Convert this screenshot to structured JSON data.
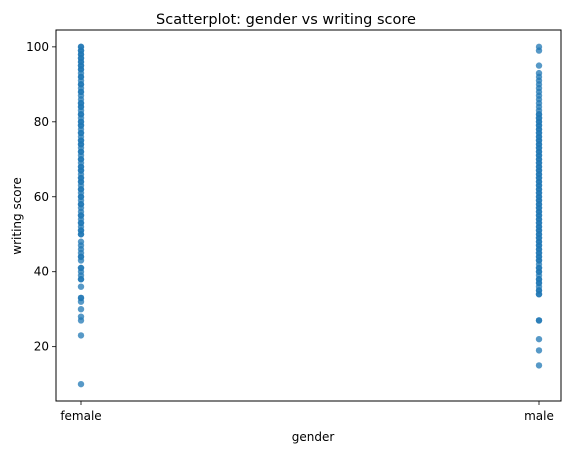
{
  "chart_data": {
    "type": "scatter",
    "title": "Scatterplot: gender vs writing score",
    "xlabel": "gender",
    "ylabel": "writing score",
    "categories": [
      "female",
      "male"
    ],
    "ylim": [
      5.5,
      104.5
    ],
    "yticks": [
      20,
      40,
      60,
      80,
      100
    ],
    "ytick_labels": [
      "20",
      "40",
      "60",
      "80",
      "100"
    ],
    "grid": false,
    "point_color": "#1f77b4",
    "point_alpha": 0.75,
    "series": [
      {
        "category": "female",
        "values": [
          10,
          23,
          27,
          28,
          30,
          32,
          33,
          33,
          36,
          38,
          38,
          39,
          40,
          41,
          41,
          43,
          44,
          44,
          45,
          46,
          47,
          48,
          50,
          50,
          51,
          51,
          52,
          53,
          53,
          54,
          55,
          55,
          56,
          57,
          58,
          58,
          59,
          60,
          60,
          61,
          62,
          62,
          63,
          64,
          64,
          65,
          65,
          66,
          67,
          67,
          68,
          68,
          69,
          70,
          70,
          71,
          72,
          72,
          73,
          74,
          74,
          75,
          75,
          76,
          77,
          77,
          78,
          79,
          79,
          80,
          80,
          81,
          82,
          82,
          83,
          84,
          84,
          85,
          85,
          86,
          87,
          88,
          88,
          89,
          90,
          90,
          91,
          92,
          92,
          93,
          94,
          94,
          95,
          95,
          96,
          96,
          97,
          97,
          98,
          98,
          99,
          99,
          100,
          100
        ]
      },
      {
        "category": "male",
        "values": [
          15,
          19,
          22,
          27,
          27,
          34,
          34,
          35,
          35,
          36,
          37,
          37,
          38,
          38,
          39,
          40,
          40,
          41,
          41,
          42,
          43,
          43,
          44,
          44,
          45,
          45,
          46,
          46,
          47,
          47,
          48,
          48,
          49,
          49,
          50,
          50,
          51,
          51,
          52,
          52,
          53,
          53,
          54,
          54,
          55,
          55,
          56,
          56,
          57,
          57,
          58,
          58,
          59,
          59,
          60,
          60,
          61,
          61,
          62,
          62,
          63,
          63,
          64,
          64,
          65,
          65,
          66,
          66,
          67,
          67,
          68,
          68,
          69,
          69,
          70,
          70,
          71,
          71,
          72,
          72,
          73,
          73,
          74,
          74,
          75,
          75,
          76,
          76,
          77,
          77,
          78,
          78,
          79,
          79,
          80,
          80,
          81,
          81,
          82,
          82,
          83,
          84,
          85,
          86,
          87,
          88,
          89,
          90,
          91,
          92,
          93,
          95,
          99,
          100
        ]
      }
    ]
  }
}
